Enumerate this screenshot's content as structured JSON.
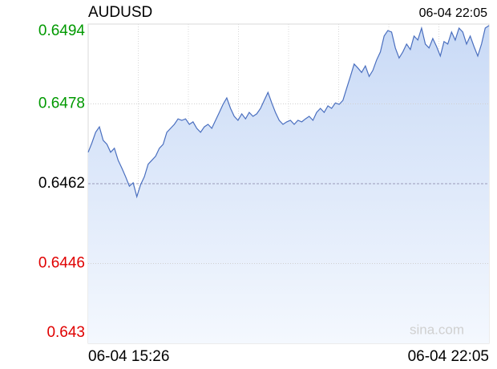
{
  "chart_data": {
    "type": "line",
    "title": "AUDUSD",
    "timestamp": "06-04 22:05",
    "x_labels": [
      "06-04 15:26",
      "06-04 22:05"
    ],
    "watermark": "sina.com",
    "ylim": [
      0.643,
      0.6494
    ],
    "yticks": [
      0.6494,
      0.6478,
      0.6462,
      0.6446,
      0.643
    ],
    "prev_close": 0.6462,
    "up_color": "#009900",
    "down_color": "#e00000",
    "flat_color": "#000000",
    "grid": true,
    "series": [
      {
        "name": "AUDUSD",
        "color": "#4a6fbf",
        "values": [
          0.64683,
          0.64702,
          0.64723,
          0.64734,
          0.64707,
          0.64699,
          0.64683,
          0.64691,
          0.64667,
          0.64651,
          0.64634,
          0.64615,
          0.64622,
          0.64594,
          0.64618,
          0.64634,
          0.64659,
          0.64667,
          0.64675,
          0.64691,
          0.64699,
          0.64723,
          0.64731,
          0.64739,
          0.6475,
          0.64747,
          0.6475,
          0.64739,
          0.64744,
          0.64731,
          0.64723,
          0.64734,
          0.64739,
          0.64731,
          0.64747,
          0.64763,
          0.64779,
          0.64792,
          0.64771,
          0.64755,
          0.64747,
          0.6476,
          0.6475,
          0.64763,
          0.64755,
          0.6476,
          0.64771,
          0.64787,
          0.64803,
          0.64782,
          0.64763,
          0.64747,
          0.64739,
          0.64744,
          0.64747,
          0.64739,
          0.64747,
          0.64744,
          0.6475,
          0.64755,
          0.64747,
          0.64763,
          0.64771,
          0.64763,
          0.64776,
          0.64771,
          0.64782,
          0.64779,
          0.64787,
          0.64811,
          0.64835,
          0.6486,
          0.64852,
          0.64843,
          0.64856,
          0.64835,
          0.64847,
          0.64868,
          0.64884,
          0.64916,
          0.64927,
          0.64924,
          0.64892,
          0.64872,
          0.64884,
          0.649,
          0.64889,
          0.64916,
          0.64908,
          0.64932,
          0.649,
          0.64892,
          0.64911,
          0.64895,
          0.64876,
          0.64905,
          0.649,
          0.64924,
          0.64908,
          0.64932,
          0.64924,
          0.649,
          0.64916,
          0.64895,
          0.64876,
          0.649,
          0.64932,
          0.64937
        ]
      }
    ]
  }
}
